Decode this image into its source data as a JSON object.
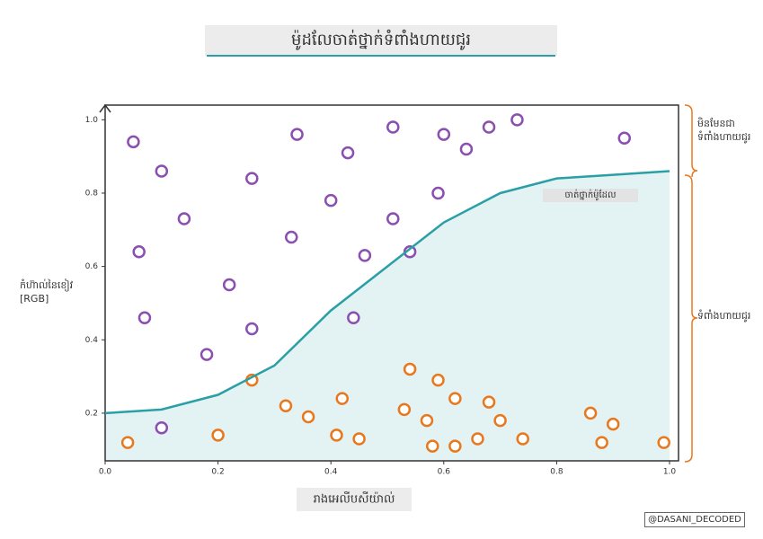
{
  "chart_data": {
    "type": "scatter",
    "title": "ម៉ូដលែចាត់ថ្នាក់ទំពាំងហាយជូរ",
    "x_label": "រាងអេលីបសីយ៉ាល់",
    "y_label": "កំហ៊ាល់នៃខៀវ [RGB]",
    "watermark": "@DASANI_DECODED",
    "xlim": [
      0,
      1
    ],
    "ylim": [
      0.07,
      1.04
    ],
    "xticks": [
      {
        "value": 0,
        "label": "0.0"
      },
      0.2,
      0.4,
      0.6,
      0.8,
      {
        "value": 1,
        "label": "1.0"
      }
    ],
    "yticks": [
      0.2,
      0.4,
      0.6,
      0.8,
      {
        "value": 1,
        "label": "1.0"
      }
    ],
    "grid": false,
    "series": [
      {
        "name": "ទំពាំងហាយជូរ",
        "color": "#e8781e",
        "x": [
          0.04,
          0.2,
          0.32,
          0.36,
          0.41,
          0.42,
          0.45,
          0.53,
          0.54,
          0.57,
          0.58,
          0.59,
          0.62,
          0.62,
          0.66,
          0.68,
          0.7,
          0.74,
          0.86,
          0.88,
          0.9,
          0.99,
          0.26
        ],
        "values": [
          0.12,
          0.14,
          0.22,
          0.19,
          0.14,
          0.24,
          0.13,
          0.21,
          0.32,
          0.18,
          0.11,
          0.29,
          0.24,
          0.11,
          0.13,
          0.23,
          0.18,
          0.13,
          0.2,
          0.12,
          0.17,
          0.12,
          0.29
        ]
      },
      {
        "name": "មិនមែនជាទំពាំងហាយជូរ",
        "color": "#8a4fb0",
        "x": [
          0.05,
          0.1,
          0.06,
          0.07,
          0.1,
          0.14,
          0.26,
          0.22,
          0.26,
          0.18,
          0.34,
          0.4,
          0.43,
          0.33,
          0.46,
          0.44,
          0.51,
          0.51,
          0.54,
          0.59,
          0.6,
          0.64,
          0.68,
          0.73,
          0.92
        ],
        "values": [
          0.94,
          0.86,
          0.64,
          0.46,
          0.16,
          0.73,
          0.84,
          0.55,
          0.43,
          0.36,
          0.96,
          0.78,
          0.91,
          0.68,
          0.63,
          0.46,
          0.98,
          0.73,
          0.64,
          0.8,
          0.96,
          0.92,
          0.98,
          1.0,
          0.95
        ]
      },
      {
        "name": "ចាត់ថ្នាក់ម៉ូដែល",
        "type": "line",
        "color": "#2a9fa6",
        "x": [
          0,
          0.1,
          0.2,
          0.3,
          0.4,
          0.5,
          0.6,
          0.7,
          0.8,
          0.9,
          1
        ],
        "values": [
          0.2,
          0.21,
          0.25,
          0.33,
          0.48,
          0.6,
          0.72,
          0.8,
          0.84,
          0.85,
          0.86
        ]
      }
    ]
  }
}
